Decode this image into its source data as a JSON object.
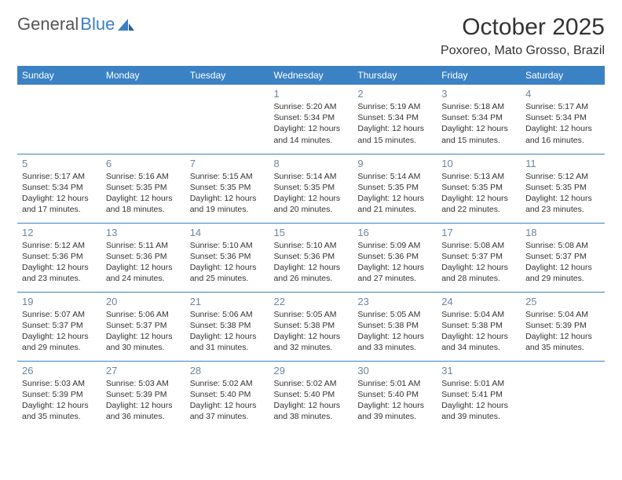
{
  "logo": {
    "text1": "General",
    "text2": "Blue"
  },
  "header": {
    "title": "October 2025",
    "location": "Poxoreo, Mato Grosso, Brazil"
  },
  "colors": {
    "header_bg": "#3b82c4",
    "header_text": "#ffffff",
    "cell_border": "#3b82c4",
    "daynum": "#6b87a0",
    "body_text": "#333333",
    "logo_gray": "#555555",
    "logo_blue": "#3b7fc4",
    "background": "#ffffff"
  },
  "days_of_week": [
    "Sunday",
    "Monday",
    "Tuesday",
    "Wednesday",
    "Thursday",
    "Friday",
    "Saturday"
  ],
  "grid": [
    [
      null,
      null,
      null,
      {
        "n": "1",
        "sr": "5:20 AM",
        "ss": "5:34 PM",
        "dl": "12 hours and 14 minutes."
      },
      {
        "n": "2",
        "sr": "5:19 AM",
        "ss": "5:34 PM",
        "dl": "12 hours and 15 minutes."
      },
      {
        "n": "3",
        "sr": "5:18 AM",
        "ss": "5:34 PM",
        "dl": "12 hours and 15 minutes."
      },
      {
        "n": "4",
        "sr": "5:17 AM",
        "ss": "5:34 PM",
        "dl": "12 hours and 16 minutes."
      }
    ],
    [
      {
        "n": "5",
        "sr": "5:17 AM",
        "ss": "5:34 PM",
        "dl": "12 hours and 17 minutes."
      },
      {
        "n": "6",
        "sr": "5:16 AM",
        "ss": "5:35 PM",
        "dl": "12 hours and 18 minutes."
      },
      {
        "n": "7",
        "sr": "5:15 AM",
        "ss": "5:35 PM",
        "dl": "12 hours and 19 minutes."
      },
      {
        "n": "8",
        "sr": "5:14 AM",
        "ss": "5:35 PM",
        "dl": "12 hours and 20 minutes."
      },
      {
        "n": "9",
        "sr": "5:14 AM",
        "ss": "5:35 PM",
        "dl": "12 hours and 21 minutes."
      },
      {
        "n": "10",
        "sr": "5:13 AM",
        "ss": "5:35 PM",
        "dl": "12 hours and 22 minutes."
      },
      {
        "n": "11",
        "sr": "5:12 AM",
        "ss": "5:35 PM",
        "dl": "12 hours and 23 minutes."
      }
    ],
    [
      {
        "n": "12",
        "sr": "5:12 AM",
        "ss": "5:36 PM",
        "dl": "12 hours and 23 minutes."
      },
      {
        "n": "13",
        "sr": "5:11 AM",
        "ss": "5:36 PM",
        "dl": "12 hours and 24 minutes."
      },
      {
        "n": "14",
        "sr": "5:10 AM",
        "ss": "5:36 PM",
        "dl": "12 hours and 25 minutes."
      },
      {
        "n": "15",
        "sr": "5:10 AM",
        "ss": "5:36 PM",
        "dl": "12 hours and 26 minutes."
      },
      {
        "n": "16",
        "sr": "5:09 AM",
        "ss": "5:36 PM",
        "dl": "12 hours and 27 minutes."
      },
      {
        "n": "17",
        "sr": "5:08 AM",
        "ss": "5:37 PM",
        "dl": "12 hours and 28 minutes."
      },
      {
        "n": "18",
        "sr": "5:08 AM",
        "ss": "5:37 PM",
        "dl": "12 hours and 29 minutes."
      }
    ],
    [
      {
        "n": "19",
        "sr": "5:07 AM",
        "ss": "5:37 PM",
        "dl": "12 hours and 29 minutes."
      },
      {
        "n": "20",
        "sr": "5:06 AM",
        "ss": "5:37 PM",
        "dl": "12 hours and 30 minutes."
      },
      {
        "n": "21",
        "sr": "5:06 AM",
        "ss": "5:38 PM",
        "dl": "12 hours and 31 minutes."
      },
      {
        "n": "22",
        "sr": "5:05 AM",
        "ss": "5:38 PM",
        "dl": "12 hours and 32 minutes."
      },
      {
        "n": "23",
        "sr": "5:05 AM",
        "ss": "5:38 PM",
        "dl": "12 hours and 33 minutes."
      },
      {
        "n": "24",
        "sr": "5:04 AM",
        "ss": "5:38 PM",
        "dl": "12 hours and 34 minutes."
      },
      {
        "n": "25",
        "sr": "5:04 AM",
        "ss": "5:39 PM",
        "dl": "12 hours and 35 minutes."
      }
    ],
    [
      {
        "n": "26",
        "sr": "5:03 AM",
        "ss": "5:39 PM",
        "dl": "12 hours and 35 minutes."
      },
      {
        "n": "27",
        "sr": "5:03 AM",
        "ss": "5:39 PM",
        "dl": "12 hours and 36 minutes."
      },
      {
        "n": "28",
        "sr": "5:02 AM",
        "ss": "5:40 PM",
        "dl": "12 hours and 37 minutes."
      },
      {
        "n": "29",
        "sr": "5:02 AM",
        "ss": "5:40 PM",
        "dl": "12 hours and 38 minutes."
      },
      {
        "n": "30",
        "sr": "5:01 AM",
        "ss": "5:40 PM",
        "dl": "12 hours and 39 minutes."
      },
      {
        "n": "31",
        "sr": "5:01 AM",
        "ss": "5:41 PM",
        "dl": "12 hours and 39 minutes."
      },
      null
    ]
  ],
  "labels": {
    "sunrise": "Sunrise:",
    "sunset": "Sunset:",
    "daylight": "Daylight:"
  }
}
